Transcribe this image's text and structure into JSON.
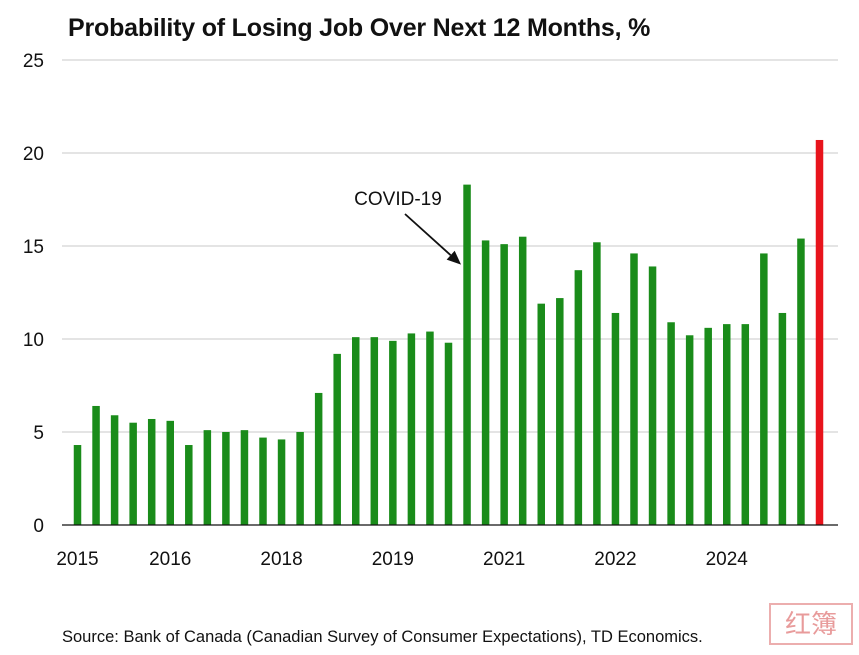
{
  "chart_data": {
    "type": "bar",
    "title": "Probability of Losing Job Over Next 12 Months, %",
    "xlabel": "",
    "ylabel": "",
    "ylim": [
      0,
      25
    ],
    "yticks": [
      0,
      5,
      10,
      15,
      20,
      25
    ],
    "grid": true,
    "xtick_labels": [
      {
        "label": "2015",
        "bar_index": 0
      },
      {
        "label": "2016",
        "bar_index": 5
      },
      {
        "label": "2018",
        "bar_index": 11
      },
      {
        "label": "2019",
        "bar_index": 17
      },
      {
        "label": "2021",
        "bar_index": 23
      },
      {
        "label": "2022",
        "bar_index": 29
      },
      {
        "label": "2024",
        "bar_index": 35
      }
    ],
    "values": [
      4.3,
      6.4,
      5.9,
      5.5,
      5.7,
      5.6,
      4.3,
      5.1,
      5.0,
      5.1,
      4.7,
      4.6,
      5.0,
      7.1,
      9.2,
      10.1,
      10.1,
      9.9,
      10.3,
      10.4,
      9.8,
      18.3,
      15.3,
      15.1,
      15.5,
      11.9,
      12.2,
      13.7,
      15.2,
      11.4,
      14.6,
      13.9,
      10.9,
      10.2,
      10.6,
      10.8,
      10.8,
      14.6,
      11.4,
      15.4,
      20.7
    ],
    "colors": {
      "default": "#1a8c1a",
      "highlight": "#e8141c"
    },
    "highlight_index": 40,
    "annotation": {
      "text": "COVID-19",
      "bar_index": 21
    }
  },
  "source": "Source: Bank of Canada (Canadian Survey of Consumer Expectations), TD Economics.",
  "watermark": "红簿"
}
